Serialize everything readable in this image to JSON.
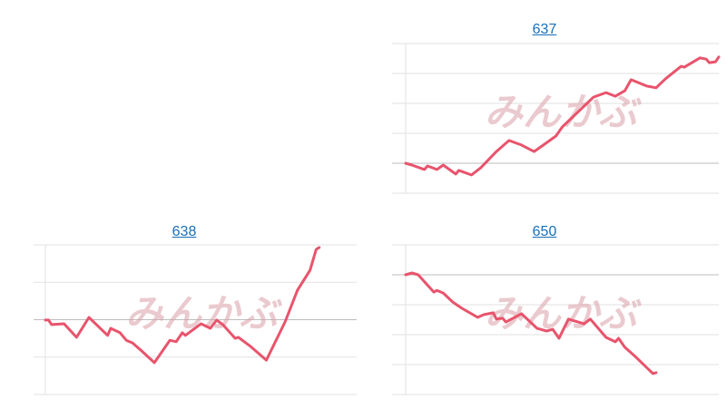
{
  "watermark": "みんかぶ",
  "colors": {
    "line": "#e8546c",
    "grid": "#e2e2e2",
    "baseline": "#bdbdbd",
    "link": "#1a6fb8"
  },
  "chart_data": [
    {
      "type": "line",
      "title": "637",
      "grid": true,
      "grid_levels": 5,
      "baseline_level": 1,
      "x": [
        0,
        2,
        6,
        7,
        10,
        12,
        16,
        17,
        21,
        24,
        29,
        33,
        37,
        41,
        44,
        48,
        50,
        54,
        60,
        64,
        67,
        70,
        72,
        77,
        80,
        83,
        88,
        89,
        94,
        96,
        97,
        99,
        100
      ],
      "values": [
        1.0,
        0.94,
        0.79,
        0.91,
        0.79,
        0.94,
        0.64,
        0.76,
        0.61,
        0.85,
        1.39,
        1.76,
        1.61,
        1.39,
        1.61,
        1.91,
        2.21,
        2.61,
        3.21,
        3.36,
        3.24,
        3.42,
        3.79,
        3.58,
        3.52,
        3.82,
        4.24,
        4.21,
        4.52,
        4.48,
        4.36,
        4.39,
        4.55
      ]
    },
    {
      "type": "line",
      "title": "638",
      "grid": true,
      "grid_levels": 4,
      "baseline_level": 2,
      "x": [
        0,
        1,
        2,
        6,
        10,
        14,
        20,
        21,
        24,
        26,
        28,
        31,
        35,
        40,
        42,
        44,
        45,
        50,
        53,
        55,
        57,
        61,
        62,
        66,
        71,
        73,
        77,
        81,
        85,
        87,
        88
      ],
      "values": [
        1.99,
        1.99,
        1.87,
        1.89,
        1.53,
        2.06,
        1.58,
        1.77,
        1.65,
        1.45,
        1.38,
        1.16,
        0.85,
        1.45,
        1.41,
        1.65,
        1.58,
        1.89,
        1.77,
        1.99,
        1.87,
        1.5,
        1.53,
        1.28,
        0.92,
        1.26,
        1.94,
        2.79,
        3.32,
        3.88,
        3.93
      ]
    },
    {
      "type": "line",
      "title": "650",
      "grid": true,
      "grid_levels": 5,
      "baseline_level": 4,
      "x": [
        0,
        2,
        4,
        9,
        10,
        12,
        15,
        18,
        23,
        25,
        28,
        29,
        31,
        32,
        37,
        42,
        45,
        47,
        49,
        52,
        57,
        59,
        64,
        67,
        68,
        70,
        73,
        79,
        80
      ],
      "values": [
        4.0,
        4.06,
        4.0,
        3.42,
        3.48,
        3.39,
        3.09,
        2.88,
        2.58,
        2.67,
        2.73,
        2.52,
        2.55,
        2.42,
        2.7,
        2.21,
        2.12,
        2.18,
        1.88,
        2.52,
        2.36,
        2.52,
        1.91,
        1.76,
        1.88,
        1.58,
        1.3,
        0.7,
        0.73
      ]
    }
  ]
}
